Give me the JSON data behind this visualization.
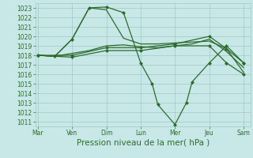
{
  "background_color": "#c8e8e8",
  "grid_color": "#a0c8c8",
  "line_color": "#2d6b2d",
  "xlabel": "Pression niveau de la mer( hPa )",
  "xlabel_fontsize": 7.5,
  "ylim": [
    1010.5,
    1023.5
  ],
  "yticks": [
    1011,
    1012,
    1013,
    1014,
    1015,
    1016,
    1017,
    1018,
    1019,
    1020,
    1021,
    1022,
    1023
  ],
  "ytick_fontsize": 5.5,
  "xtick_labels": [
    "Mar",
    "Ven",
    "Dim",
    "Lun",
    "Mer",
    "Jeu",
    "Sam"
  ],
  "xtick_positions": [
    0,
    1.5,
    3,
    4.5,
    6,
    7.5,
    9
  ],
  "xlim": [
    -0.1,
    9.3
  ],
  "series": [
    {
      "x": [
        0,
        0.75,
        1.5,
        2.25,
        3.0,
        3.75,
        4.5,
        5.0,
        5.25,
        6.0,
        6.5,
        6.75,
        7.5,
        8.25,
        9.0
      ],
      "y": [
        1018.0,
        1017.9,
        1019.7,
        1023.0,
        1023.1,
        1022.5,
        1017.2,
        1015.0,
        1012.8,
        1010.7,
        1013.0,
        1015.2,
        1017.2,
        1019.0,
        1017.2
      ],
      "marker": "D",
      "linewidth": 0.9,
      "markersize": 2.0
    },
    {
      "x": [
        0,
        0.75,
        1.5,
        2.25,
        3.0,
        3.75,
        4.5,
        5.25,
        6.0,
        6.75,
        7.5,
        8.25,
        9.0
      ],
      "y": [
        1018.0,
        1017.9,
        1019.7,
        1023.0,
        1022.8,
        1019.8,
        1019.2,
        1019.2,
        1019.3,
        1019.4,
        1019.5,
        1018.7,
        1016.2
      ],
      "marker": null,
      "linewidth": 0.9,
      "markersize": 0
    },
    {
      "x": [
        0,
        0.75,
        1.5,
        2.25,
        3.0,
        3.75,
        4.5,
        5.25,
        6.0,
        6.75,
        7.5,
        8.25,
        9.0
      ],
      "y": [
        1018.0,
        1017.9,
        1018.2,
        1018.5,
        1019.0,
        1019.1,
        1018.9,
        1018.8,
        1019.0,
        1019.2,
        1019.7,
        1018.4,
        1016.7
      ],
      "marker": null,
      "linewidth": 0.9,
      "markersize": 0
    },
    {
      "x": [
        0,
        1.5,
        3.0,
        4.5,
        6.0,
        7.5,
        8.25,
        9.0
      ],
      "y": [
        1018.0,
        1018.0,
        1018.8,
        1018.8,
        1019.2,
        1020.0,
        1018.7,
        1017.2
      ],
      "marker": "D",
      "linewidth": 0.9,
      "markersize": 2.0
    },
    {
      "x": [
        0,
        1.5,
        3.0,
        4.5,
        6.0,
        7.5,
        8.25,
        9.0
      ],
      "y": [
        1018.0,
        1017.8,
        1018.5,
        1018.5,
        1019.0,
        1019.0,
        1017.2,
        1016.0
      ],
      "marker": "D",
      "linewidth": 0.9,
      "markersize": 2.0
    }
  ]
}
